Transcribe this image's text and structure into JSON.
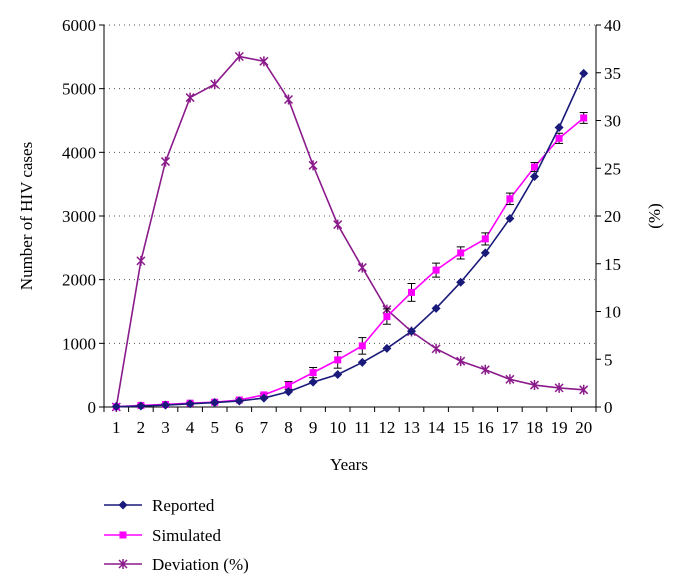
{
  "chart_data": {
    "type": "line",
    "x": [
      1,
      2,
      3,
      4,
      5,
      6,
      7,
      8,
      9,
      10,
      11,
      12,
      13,
      14,
      15,
      16,
      17,
      18,
      19,
      20
    ],
    "xlabel": "Years",
    "ylabel": "Number of HIV cases",
    "y2label": "(%)",
    "ylim": [
      0,
      6000
    ],
    "y2lim": [
      0,
      40
    ],
    "yticks": [
      "0",
      "1000",
      "2000",
      "3000",
      "4000",
      "5000",
      "6000"
    ],
    "y2ticks": [
      "0",
      "5",
      "10",
      "15",
      "20",
      "25",
      "30",
      "35",
      "40"
    ],
    "xticks": [
      "1",
      "2",
      "3",
      "4",
      "5",
      "6",
      "7",
      "8",
      "9",
      "10",
      "11",
      "12",
      "13",
      "14",
      "15",
      "16",
      "17",
      "18",
      "19",
      "20"
    ],
    "grid": "horizontal dotted",
    "legend_position": "bottom",
    "series": [
      {
        "name": "Reported",
        "axis": "left",
        "color": "#1a1a7a",
        "marker": "diamond",
        "values": [
          5,
          15,
          30,
          50,
          70,
          95,
          140,
          240,
          390,
          510,
          700,
          920,
          1190,
          1550,
          1960,
          2420,
          2960,
          3620,
          4390,
          5240
        ]
      },
      {
        "name": "Simulated",
        "axis": "left",
        "color": "#ff00ff",
        "marker": "square",
        "error_bars": true,
        "values": [
          5,
          25,
          40,
          60,
          75,
          110,
          190,
          340,
          540,
          740,
          960,
          1420,
          1800,
          2150,
          2420,
          2640,
          3270,
          3770,
          4220,
          4540
        ],
        "errors": [
          5,
          10,
          12,
          15,
          15,
          20,
          25,
          60,
          80,
          130,
          130,
          120,
          140,
          110,
          95,
          95,
          90,
          70,
          80,
          85
        ]
      },
      {
        "name": "Deviation (%)",
        "axis": "right",
        "color": "#8b1a8b",
        "marker": "x",
        "values": [
          0,
          15.3,
          25.7,
          32.4,
          33.8,
          36.7,
          36.2,
          32.2,
          25.3,
          19.1,
          14.6,
          10.2,
          7.9,
          6.1,
          4.8,
          3.9,
          2.9,
          2.3,
          2.0,
          1.8
        ]
      }
    ]
  }
}
